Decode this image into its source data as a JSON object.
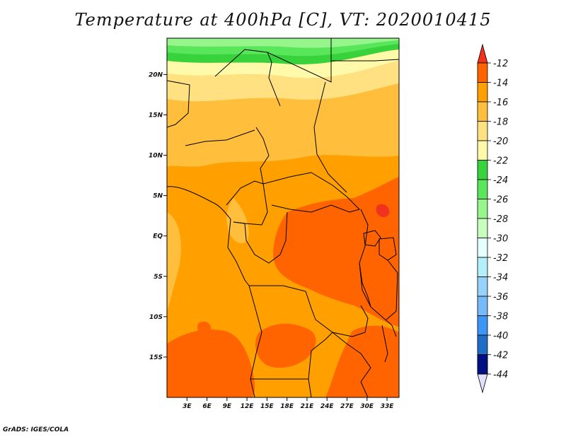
{
  "title": "Temperature at 400hPa [C], VT: 2020010415",
  "credit": "GrADS: IGES/COLA",
  "map": {
    "lon_range": [
      0,
      34.8
    ],
    "lat_range": [
      -20,
      24.5
    ],
    "x_ticks": [
      {
        "value": 3,
        "label": "3E"
      },
      {
        "value": 6,
        "label": "6E"
      },
      {
        "value": 9,
        "label": "9E"
      },
      {
        "value": 12,
        "label": "12E"
      },
      {
        "value": 15,
        "label": "15E"
      },
      {
        "value": 18,
        "label": "18E"
      },
      {
        "value": 21,
        "label": "21E"
      },
      {
        "value": 24,
        "label": "24E"
      },
      {
        "value": 27,
        "label": "27E"
      },
      {
        "value": 30,
        "label": "30E"
      },
      {
        "value": 33,
        "label": "33E"
      }
    ],
    "y_ticks": [
      {
        "value": 20,
        "label": "20N"
      },
      {
        "value": 15,
        "label": "15N"
      },
      {
        "value": 10,
        "label": "10N"
      },
      {
        "value": 5,
        "label": "5N"
      },
      {
        "value": 0,
        "label": "EQ"
      },
      {
        "value": -5,
        "label": "5S"
      },
      {
        "value": -10,
        "label": "10S"
      },
      {
        "value": -15,
        "label": "15S"
      }
    ]
  },
  "colorbar": {
    "bins": [
      {
        "label": "-12",
        "color": "#ff6400"
      },
      {
        "label": "-14",
        "color": "#ffa000"
      },
      {
        "label": "-16",
        "color": "#ffbe3c"
      },
      {
        "label": "-18",
        "color": "#ffe182"
      },
      {
        "label": "-20",
        "color": "#fffaaa"
      },
      {
        "label": "-22",
        "color": "#37d23c"
      },
      {
        "label": "-24",
        "color": "#5ae65a"
      },
      {
        "label": "-26",
        "color": "#96f58c"
      },
      {
        "label": "-28",
        "color": "#c8ffbe"
      },
      {
        "label": "-30",
        "color": "#e6ffff"
      },
      {
        "label": "-32",
        "color": "#b4f0fa"
      },
      {
        "label": "-34",
        "color": "#96d2fa"
      },
      {
        "label": "-36",
        "color": "#78b9fa"
      },
      {
        "label": "-38",
        "color": "#3c96f5"
      },
      {
        "label": "-40",
        "color": "#1e6ec8"
      },
      {
        "label": "-42",
        "color": "#0a50b4"
      },
      {
        "label": "-44",
        "color": "#000f82"
      }
    ],
    "top_triangle_color": "#f0321e",
    "bottom_triangle_color": "#e1e1ff"
  }
}
